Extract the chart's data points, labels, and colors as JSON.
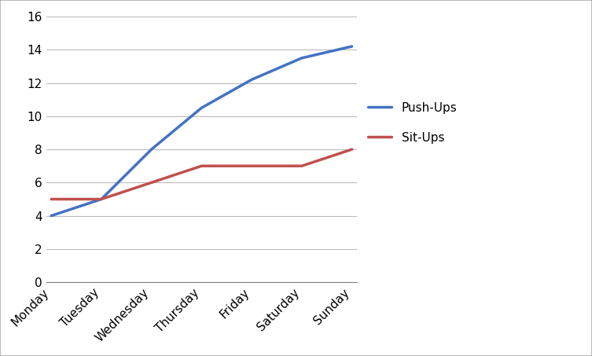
{
  "categories": [
    "Monday",
    "Tuesday",
    "Wednesday",
    "Thursday",
    "Friday",
    "Saturday",
    "Sunday"
  ],
  "pushups": [
    4,
    5,
    8,
    10.5,
    12.2,
    13.5,
    14.2
  ],
  "situps": [
    5,
    5,
    6,
    7,
    7,
    7,
    8
  ],
  "pushups_color": "#4472C4",
  "situps_color": "#C0504D",
  "pushups_label": "Push-Ups",
  "situps_label": "Sit-Ups",
  "ylim": [
    0,
    16
  ],
  "yticks": [
    0,
    2,
    4,
    6,
    8,
    10,
    12,
    14,
    16
  ],
  "line_width": 2.5,
  "background_color": "#ffffff",
  "grid_color": "#bbbbbb",
  "legend_fontsize": 11,
  "tick_fontsize": 11,
  "fig_width": 7.53,
  "fig_height": 4.53,
  "border_color": "#808080"
}
